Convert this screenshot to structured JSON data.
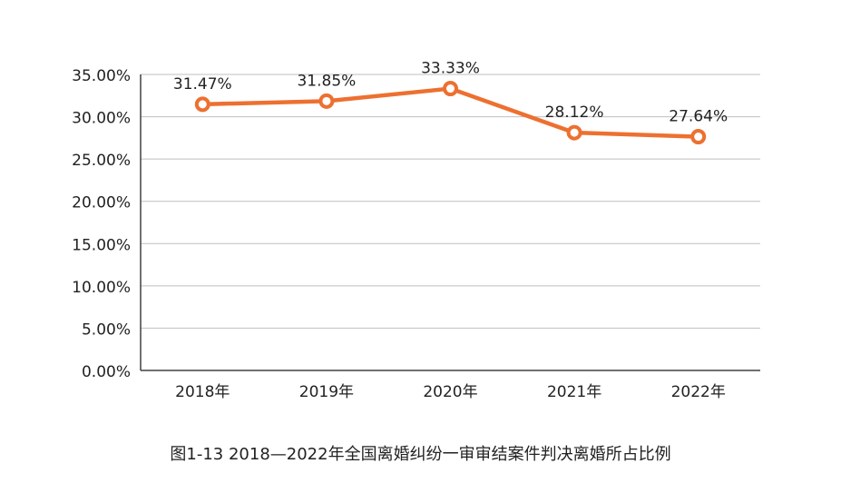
{
  "caption": "图1-13  2018—2022年全国离婚纠纷一审审结案件判决离婚所占比例",
  "chart_data": {
    "type": "line",
    "categories": [
      "2018年",
      "2019年",
      "2020年",
      "2021年",
      "2022年"
    ],
    "series": [
      {
        "values": [
          31.47,
          31.85,
          33.33,
          28.12,
          27.64
        ],
        "labels": [
          "31.47%",
          "31.85%",
          "33.33%",
          "28.12%",
          "27.64%"
        ],
        "color": "#ed7031"
      }
    ],
    "ylim": [
      0,
      35
    ],
    "yticks": [
      0,
      5,
      10,
      15,
      20,
      25,
      30,
      35
    ],
    "ytick_labels": [
      "0.00%",
      "5.00%",
      "10.00%",
      "15.00%",
      "20.00%",
      "25.00%",
      "30.00%",
      "35.00%"
    ],
    "grid": true,
    "gridline_color": "#bfbfbf",
    "axis_color": "#404040"
  }
}
